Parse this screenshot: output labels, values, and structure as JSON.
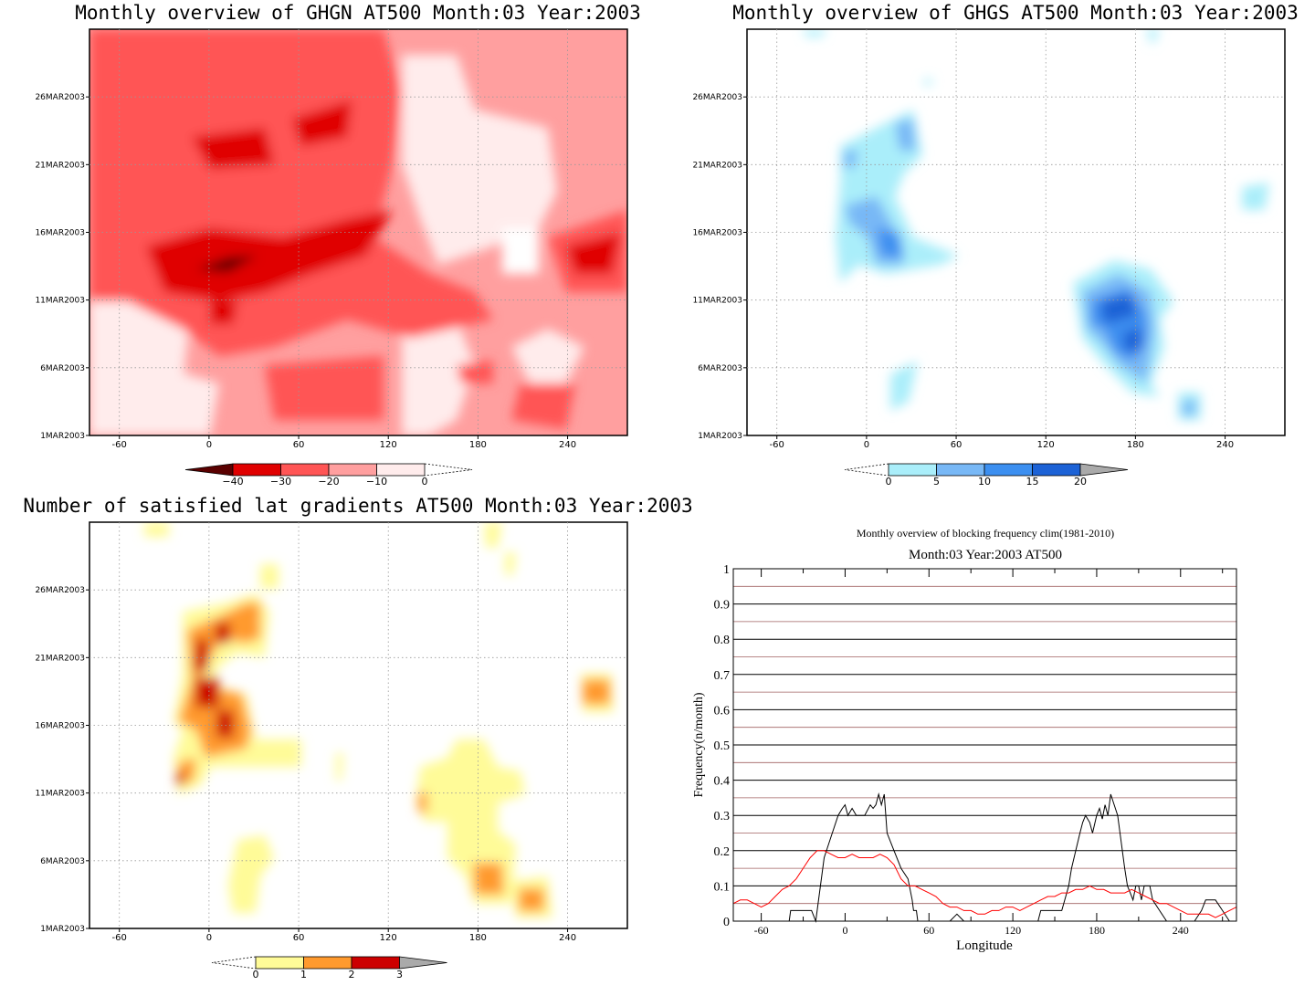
{
  "panels": [
    {
      "id": "ghgn",
      "title": "Monthly overview  of  GHGN  AT500  Month:03  Year:2003",
      "y_ticks": [
        "1MAR2003",
        "6MAR2003",
        "11MAR2003",
        "16MAR2003",
        "21MAR2003",
        "26MAR2003"
      ],
      "x_ticks": [
        "-60",
        "0",
        "60",
        "120",
        "180",
        "240"
      ],
      "colorbar": {
        "ticks": [
          "−40",
          "−30",
          "−20",
          "−10",
          "0"
        ],
        "colors": [
          "#5a0000",
          "#e00000",
          "#ff5555",
          "#ff9f9f",
          "#ffecec"
        ]
      }
    },
    {
      "id": "ghgs",
      "title": "Monthly overview  of  GHGS  AT500  Month:03  Year:2003",
      "y_ticks": [
        "1MAR2003",
        "6MAR2003",
        "11MAR2003",
        "16MAR2003",
        "21MAR2003",
        "26MAR2003"
      ],
      "x_ticks": [
        "-60",
        "0",
        "60",
        "120",
        "180",
        "240"
      ],
      "colorbar": {
        "ticks": [
          "0",
          "5",
          "10",
          "15",
          "20"
        ],
        "colors": [
          "#aaeefa",
          "#78b8f6",
          "#3c8ff0",
          "#1c62d6",
          "#aaaaaa"
        ]
      }
    },
    {
      "id": "latgrad",
      "title": "Number  of  satisfied  lat  gradients  AT500  Month:03  Year:2003",
      "y_ticks": [
        "1MAR2003",
        "6MAR2003",
        "11MAR2003",
        "16MAR2003",
        "21MAR2003",
        "26MAR2003"
      ],
      "x_ticks": [
        "-60",
        "0",
        "60",
        "120",
        "180",
        "240"
      ],
      "colorbar": {
        "ticks": [
          "0",
          "1",
          "2",
          "3"
        ],
        "colors": [
          "#fffb98",
          "#ff9a2e",
          "#cc0000",
          "#aaaaaa"
        ]
      }
    }
  ],
  "chart_data": {
    "type": "line",
    "title": "Monthly overview of blocking frequency clim(1981-2010)",
    "subtitle": "Month:03 Year:2003  AT500",
    "xlabel": "Longitude",
    "ylabel": "Frequency(n/month)",
    "x_ticks": [
      "-60",
      "0",
      "60",
      "120",
      "180",
      "240"
    ],
    "y_ticks": [
      "0",
      "0.1",
      "0.2",
      "0.3",
      "0.4",
      "0.5",
      "0.6",
      "0.7",
      "0.8",
      "0.9",
      "1"
    ],
    "xlim": [
      -80,
      280
    ],
    "ylim": [
      0,
      1
    ],
    "grid": "horizontal",
    "series": [
      {
        "color": "#000000",
        "x": [
          -40,
          -39,
          -24,
          -21,
          -15,
          -10,
          -5,
          -2,
          0,
          2,
          5,
          8,
          10,
          14,
          18,
          20,
          22,
          24,
          26,
          28,
          30,
          35,
          40,
          45,
          48,
          49,
          50,
          51,
          52,
          58,
          60,
          62,
          65,
          70,
          75,
          80,
          85,
          90,
          95,
          100,
          105,
          110,
          115,
          120,
          125,
          130,
          135,
          138,
          140,
          145,
          150,
          155,
          160,
          162,
          165,
          168,
          170,
          172,
          175,
          177,
          180,
          182,
          184,
          186,
          188,
          190,
          195,
          200,
          202,
          204,
          206,
          208,
          210,
          212,
          214,
          216,
          218,
          220,
          225,
          230,
          235,
          240,
          245,
          250,
          255,
          258,
          260,
          265,
          270,
          275,
          280
        ],
        "y": [
          0,
          0.03,
          0.03,
          0,
          0.18,
          0.24,
          0.3,
          0.32,
          0.33,
          0.3,
          0.32,
          0.3,
          0.3,
          0.3,
          0.33,
          0.32,
          0.33,
          0.36,
          0.33,
          0.36,
          0.25,
          0.2,
          0.15,
          0.12,
          0.06,
          0.03,
          0.03,
          0.03,
          0,
          0,
          0,
          0,
          0,
          0,
          0,
          0.02,
          0,
          0,
          0,
          0,
          0,
          0,
          0,
          0,
          0,
          0,
          0,
          0,
          0.03,
          0.03,
          0.03,
          0.03,
          0.1,
          0.15,
          0.2,
          0.25,
          0.28,
          0.3,
          0.28,
          0.25,
          0.3,
          0.32,
          0.29,
          0.33,
          0.3,
          0.36,
          0.3,
          0.15,
          0.1,
          0.08,
          0.06,
          0.1,
          0.1,
          0.06,
          0.1,
          0.1,
          0.1,
          0.06,
          0.03,
          0,
          0,
          0,
          0,
          0,
          0.03,
          0.06,
          0.06,
          0.06,
          0.03,
          0,
          0
        ]
      },
      {
        "color": "#ff0000",
        "x": [
          -80,
          -75,
          -70,
          -65,
          -60,
          -55,
          -50,
          -45,
          -40,
          -35,
          -30,
          -25,
          -20,
          -15,
          -10,
          -5,
          0,
          5,
          10,
          15,
          20,
          25,
          30,
          35,
          40,
          45,
          50,
          55,
          60,
          65,
          70,
          75,
          80,
          85,
          90,
          95,
          100,
          105,
          110,
          115,
          120,
          125,
          130,
          135,
          140,
          145,
          150,
          155,
          160,
          165,
          170,
          175,
          180,
          185,
          190,
          195,
          200,
          205,
          210,
          215,
          220,
          225,
          230,
          235,
          240,
          245,
          250,
          255,
          260,
          265,
          270,
          275,
          280
        ],
        "y": [
          0.05,
          0.06,
          0.06,
          0.05,
          0.04,
          0.05,
          0.07,
          0.09,
          0.1,
          0.12,
          0.15,
          0.18,
          0.2,
          0.2,
          0.19,
          0.18,
          0.18,
          0.19,
          0.18,
          0.18,
          0.18,
          0.19,
          0.18,
          0.16,
          0.12,
          0.1,
          0.1,
          0.09,
          0.08,
          0.07,
          0.05,
          0.04,
          0.04,
          0.03,
          0.03,
          0.02,
          0.02,
          0.03,
          0.03,
          0.04,
          0.04,
          0.03,
          0.04,
          0.05,
          0.06,
          0.07,
          0.07,
          0.08,
          0.08,
          0.09,
          0.09,
          0.1,
          0.09,
          0.09,
          0.08,
          0.08,
          0.08,
          0.09,
          0.08,
          0.07,
          0.06,
          0.05,
          0.05,
          0.04,
          0.03,
          0.02,
          0.02,
          0.02,
          0.02,
          0.01,
          0.02,
          0.03,
          0.04
        ]
      }
    ]
  }
}
